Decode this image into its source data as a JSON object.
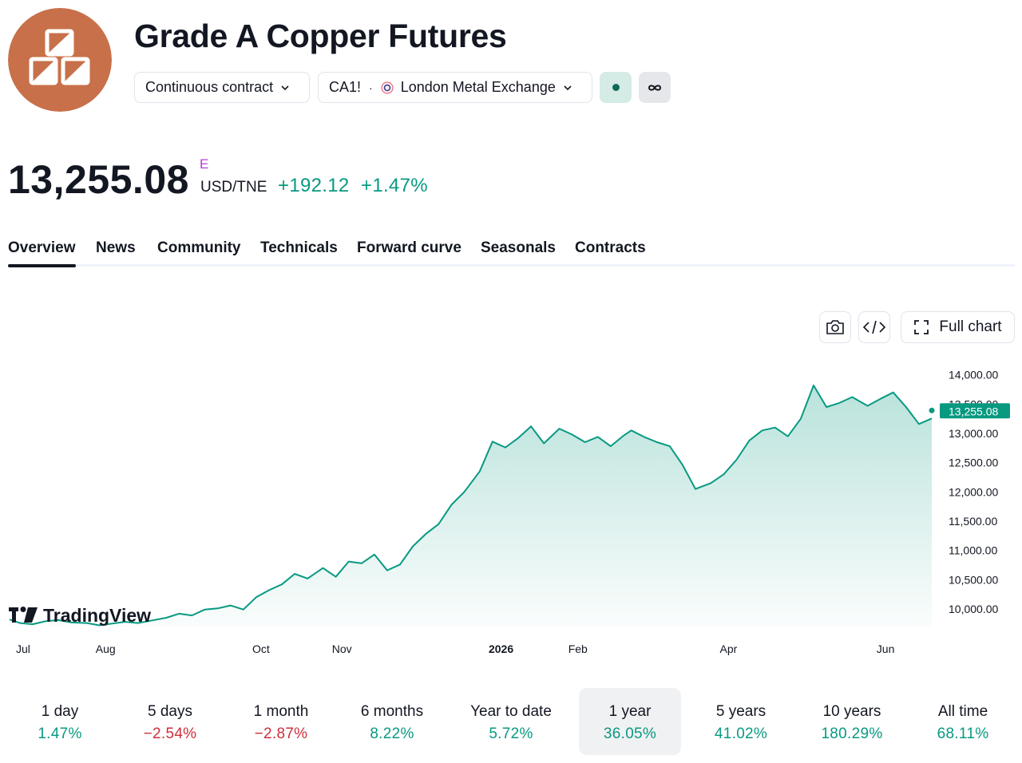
{
  "header": {
    "title": "Grade A Copper Futures",
    "logo_color": "#c8704a",
    "contract_selector": "Continuous contract",
    "symbol": "CA1!",
    "exchange": "London Metal Exchange"
  },
  "quote": {
    "price": "13,255.08",
    "flag": "E",
    "currency": "USD/TNE",
    "change": "+192.12",
    "change_percent": "+1.47%",
    "positive_color": "#089981",
    "negative_color": "#cc2f3c"
  },
  "tabs": [
    {
      "label": "Overview",
      "active": true
    },
    {
      "label": "News"
    },
    {
      "label": "Community"
    },
    {
      "label": "Technicals"
    },
    {
      "label": "Forward curve"
    },
    {
      "label": "Seasonals"
    },
    {
      "label": "Contracts"
    }
  ],
  "chart_toolbar": {
    "full_chart_label": "Full chart"
  },
  "watermark": "TradingView",
  "chart_data": {
    "type": "area",
    "series": [
      {
        "color": "#089981",
        "points": [
          [
            "2025-07-01",
            9820
          ],
          [
            "2025-07-05",
            9760
          ],
          [
            "2025-07-10",
            9740
          ],
          [
            "2025-07-15",
            9790
          ],
          [
            "2025-07-20",
            9810
          ],
          [
            "2025-07-25",
            9770
          ],
          [
            "2025-07-31",
            9760
          ],
          [
            "2025-08-05",
            9720
          ],
          [
            "2025-08-10",
            9750
          ],
          [
            "2025-08-15",
            9780
          ],
          [
            "2025-08-20",
            9760
          ],
          [
            "2025-08-25",
            9800
          ],
          [
            "2025-08-31",
            9850
          ],
          [
            "2025-09-05",
            9920
          ],
          [
            "2025-09-10",
            9890
          ],
          [
            "2025-09-15",
            9990
          ],
          [
            "2025-09-20",
            10010
          ],
          [
            "2025-09-25",
            10060
          ],
          [
            "2025-09-30",
            9990
          ],
          [
            "2025-10-05",
            10200
          ],
          [
            "2025-10-10",
            10320
          ],
          [
            "2025-10-15",
            10420
          ],
          [
            "2025-10-20",
            10600
          ],
          [
            "2025-10-25",
            10520
          ],
          [
            "2025-10-31",
            10700
          ],
          [
            "2025-11-05",
            10550
          ],
          [
            "2025-11-10",
            10810
          ],
          [
            "2025-11-15",
            10780
          ],
          [
            "2025-11-20",
            10930
          ],
          [
            "2025-11-25",
            10660
          ],
          [
            "2025-11-30",
            10760
          ],
          [
            "2025-12-05",
            11070
          ],
          [
            "2025-12-10",
            11280
          ],
          [
            "2025-12-15",
            11450
          ],
          [
            "2025-12-20",
            11780
          ],
          [
            "2025-12-25",
            12000
          ],
          [
            "2025-12-31",
            12350
          ],
          [
            "2026-01-05",
            12860
          ],
          [
            "2026-01-10",
            12760
          ],
          [
            "2026-01-15",
            12920
          ],
          [
            "2026-01-20",
            13120
          ],
          [
            "2026-01-25",
            12830
          ],
          [
            "2026-01-31",
            13080
          ],
          [
            "2026-02-05",
            12980
          ],
          [
            "2026-02-10",
            12850
          ],
          [
            "2026-02-15",
            12940
          ],
          [
            "2026-02-20",
            12780
          ],
          [
            "2026-02-25",
            12960
          ],
          [
            "2026-02-28",
            13050
          ],
          [
            "2026-03-05",
            12940
          ],
          [
            "2026-03-10",
            12850
          ],
          [
            "2026-03-15",
            12780
          ],
          [
            "2026-03-20",
            12460
          ],
          [
            "2026-03-25",
            12050
          ],
          [
            "2026-03-31",
            12150
          ],
          [
            "2026-04-05",
            12300
          ],
          [
            "2026-04-10",
            12550
          ],
          [
            "2026-04-15",
            12880
          ],
          [
            "2026-04-20",
            13050
          ],
          [
            "2026-04-25",
            13100
          ],
          [
            "2026-04-30",
            12950
          ],
          [
            "2026-05-05",
            13250
          ],
          [
            "2026-05-10",
            13820
          ],
          [
            "2026-05-15",
            13450
          ],
          [
            "2026-05-20",
            13520
          ],
          [
            "2026-05-25",
            13620
          ],
          [
            "2026-05-31",
            13470
          ],
          [
            "2026-06-05",
            13590
          ],
          [
            "2026-06-10",
            13700
          ],
          [
            "2026-06-15",
            13450
          ],
          [
            "2026-06-20",
            13160
          ],
          [
            "2026-06-25",
            13255.08
          ]
        ]
      }
    ],
    "last_value_label": "13,255.08",
    "y_ticks": [
      "14,000.00",
      "13,500.00",
      "13,000.00",
      "12,500.00",
      "12,000.00",
      "11,500.00",
      "11,000.00",
      "10,500.00",
      "10,000.00"
    ],
    "y_tick_values": [
      14000,
      13500,
      13000,
      12500,
      12000,
      11500,
      11000,
      10500,
      10000
    ],
    "x_ticks": [
      {
        "label": "Jul",
        "date": "2025-07-01",
        "bold": false
      },
      {
        "label": "Aug",
        "date": "2025-08-01",
        "bold": false
      },
      {
        "label": "Oct",
        "date": "2025-10-01",
        "bold": false
      },
      {
        "label": "Nov",
        "date": "2025-11-01",
        "bold": false
      },
      {
        "label": "2026",
        "date": "2026-01-01",
        "bold": true
      },
      {
        "label": "Feb",
        "date": "2026-02-01",
        "bold": false
      },
      {
        "label": "Apr",
        "date": "2026-04-01",
        "bold": false
      },
      {
        "label": "Jun",
        "date": "2026-06-01",
        "bold": false
      }
    ],
    "ylim": [
      9700,
      14200
    ],
    "xlim": [
      "2025-07-01",
      "2026-06-25"
    ]
  },
  "periods": [
    {
      "label": "1 day",
      "value": "1.47%",
      "positive": true
    },
    {
      "label": "5 days",
      "value": "−2.54%",
      "positive": false
    },
    {
      "label": "1 month",
      "value": "−2.87%",
      "positive": false
    },
    {
      "label": "6 months",
      "value": "8.22%",
      "positive": true
    },
    {
      "label": "Year to date",
      "value": "5.72%",
      "positive": true
    },
    {
      "label": "1 year",
      "value": "36.05%",
      "positive": true,
      "active": true
    },
    {
      "label": "5 years",
      "value": "41.02%",
      "positive": true
    },
    {
      "label": "10 years",
      "value": "180.29%",
      "positive": true
    },
    {
      "label": "All time",
      "value": "68.11%",
      "positive": true
    }
  ]
}
